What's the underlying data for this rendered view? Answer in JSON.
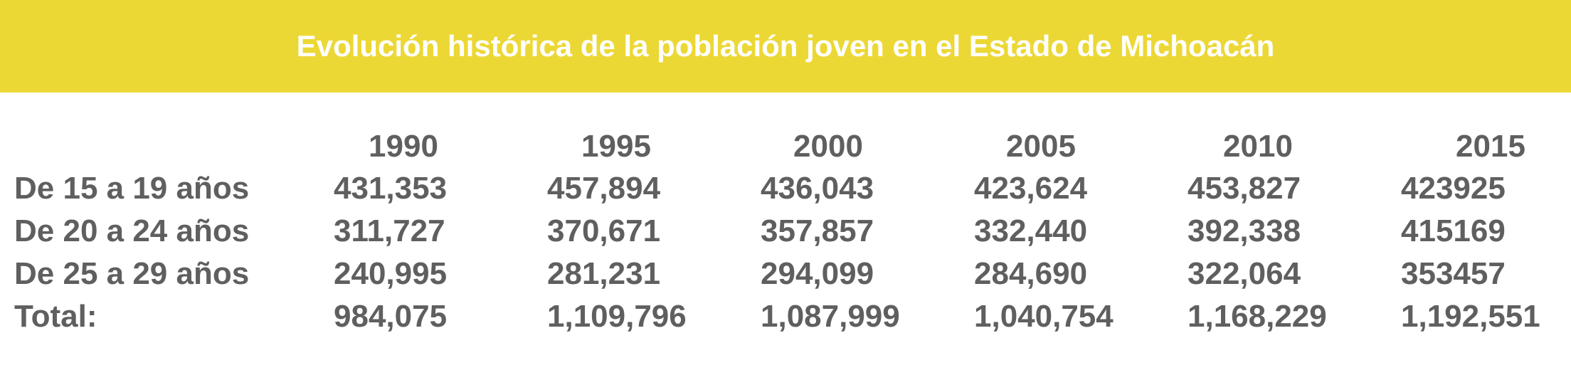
{
  "header": {
    "title": "Evolución histórica de la población joven en el Estado de Michoacán"
  },
  "table": {
    "columns": [
      "1990",
      "1995",
      "2000",
      "2005",
      "2010",
      "2015"
    ],
    "rows": [
      [
        "De 15 a 19 años",
        "431,353",
        "457,894",
        "436,043",
        "423,624",
        "453,827",
        "423925"
      ],
      [
        "De 20 a 24 años",
        "311,727",
        "370,671",
        "357,857",
        "332,440",
        "392,338",
        "415169"
      ],
      [
        "De 25 a 29 años",
        "240,995",
        "281,231",
        "294,099",
        "284,690",
        "322,064",
        "353457"
      ],
      [
        "Total:",
        "984,075",
        "1,109,796",
        "1,087,999",
        "1,040,754",
        "1,168,229",
        "1,192,551"
      ]
    ]
  }
}
